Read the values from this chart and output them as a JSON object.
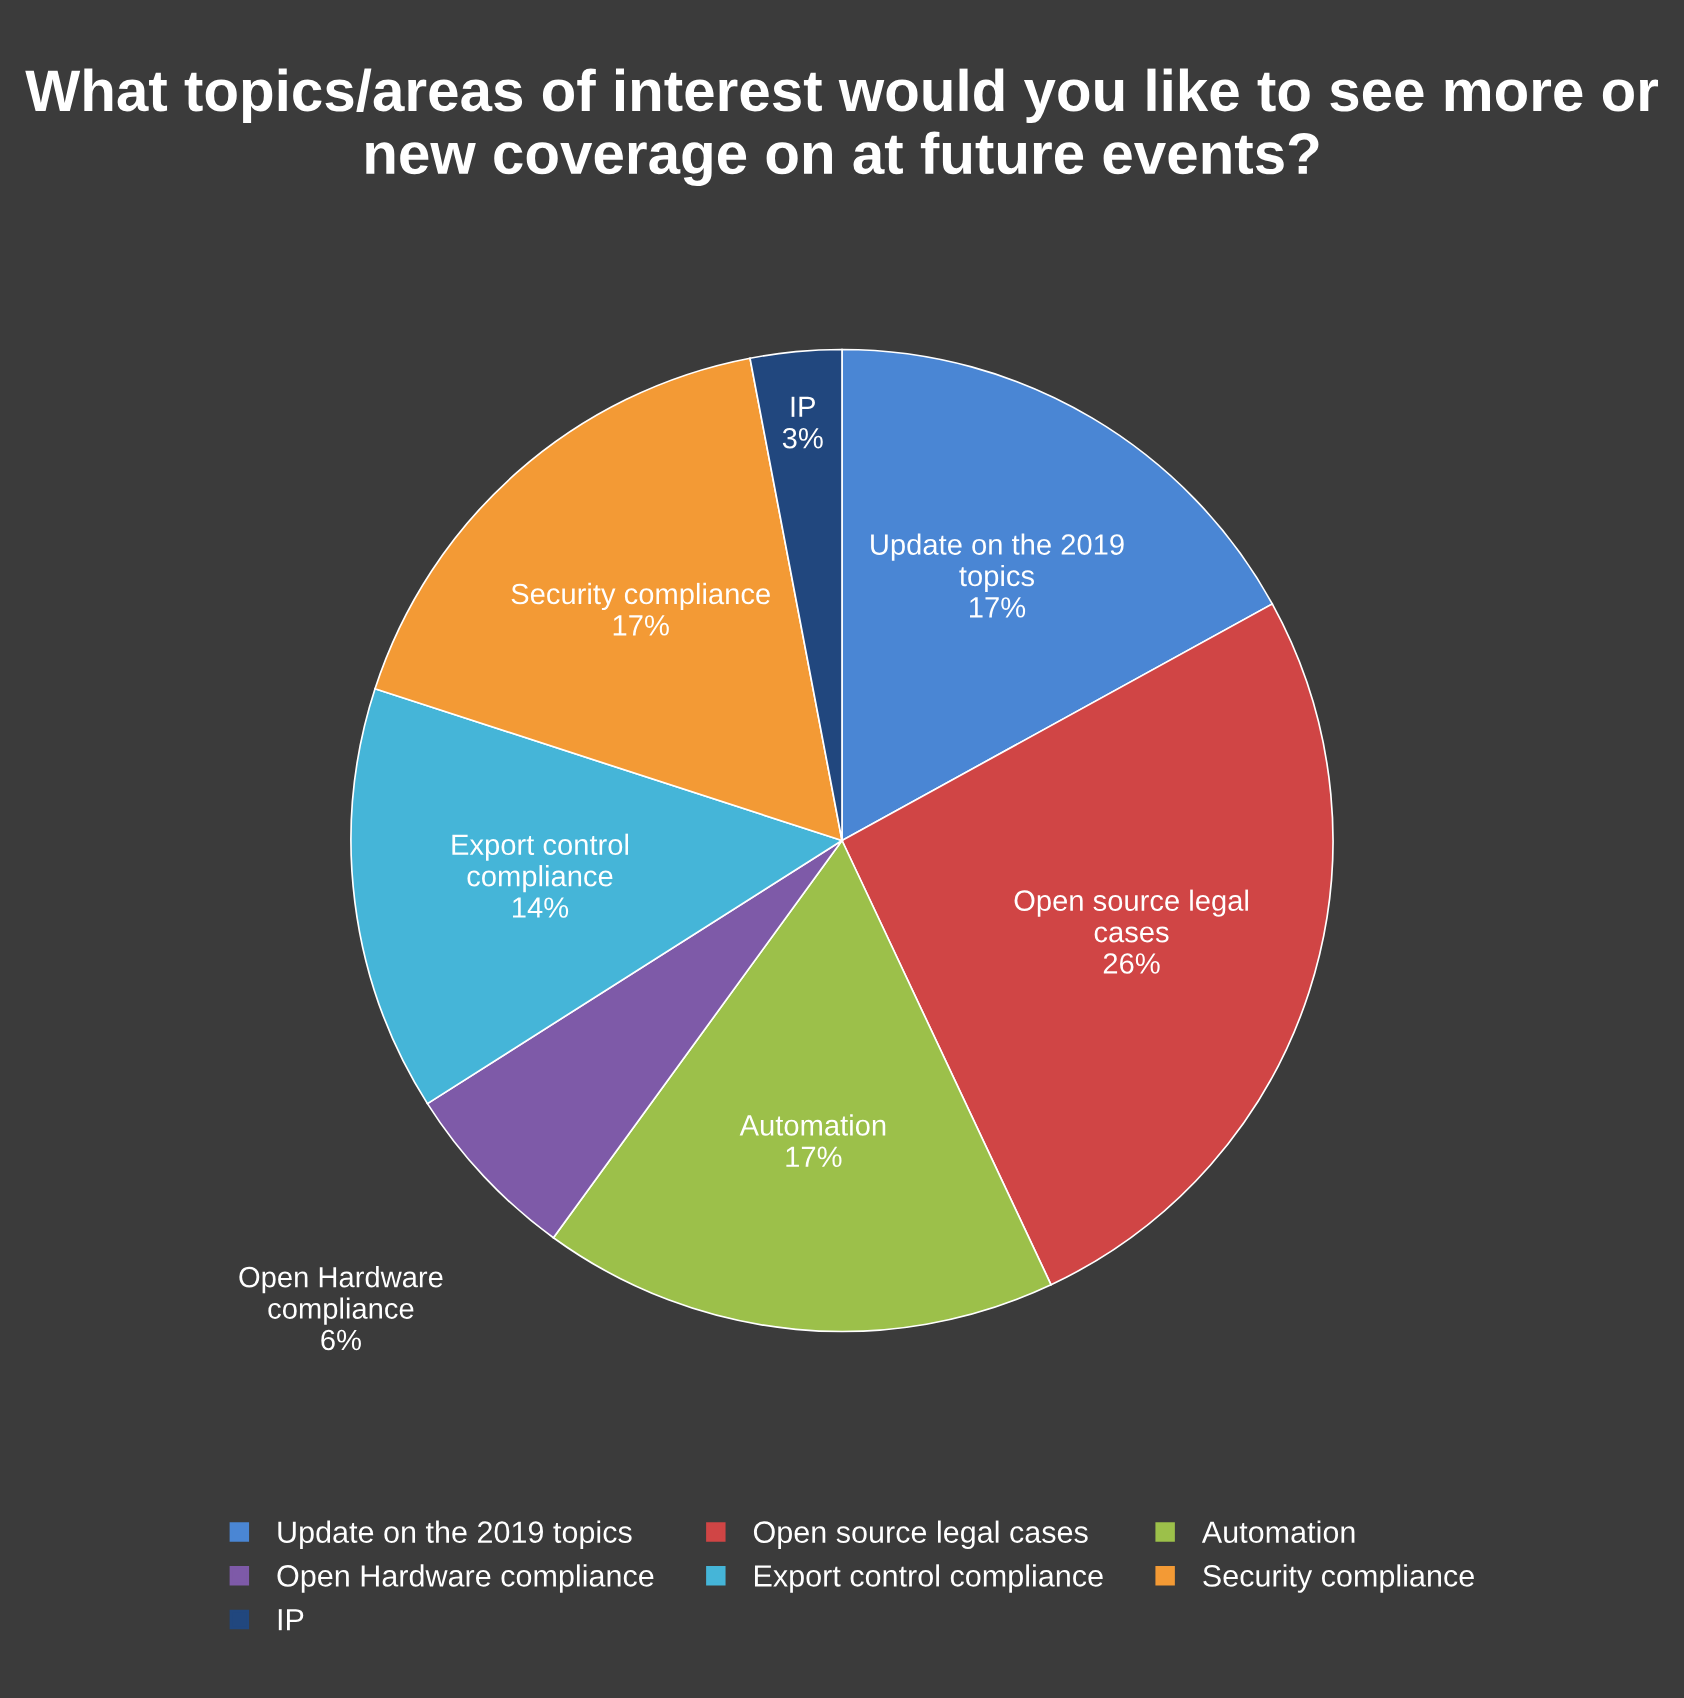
{
  "chart_data": {
    "type": "pie",
    "title": "What topics/areas of interest would you like to see more or new coverage on at future events?",
    "categories": [
      "Update on the 2019 topics",
      "Open source legal cases",
      "Automation",
      "Open Hardware compliance",
      "Export control compliance",
      "Security compliance",
      "IP"
    ],
    "values": [
      17,
      26,
      17,
      6,
      14,
      17,
      3
    ],
    "colors": [
      "#4a86d4",
      "#d04545",
      "#9cc04a",
      "#7e5aa8",
      "#45b5d8",
      "#f39a35",
      "#21477e"
    ],
    "value_labels": [
      "17%",
      "26%",
      "17%",
      "6%",
      "14%",
      "17%",
      "3%"
    ],
    "legend": "bottom"
  }
}
